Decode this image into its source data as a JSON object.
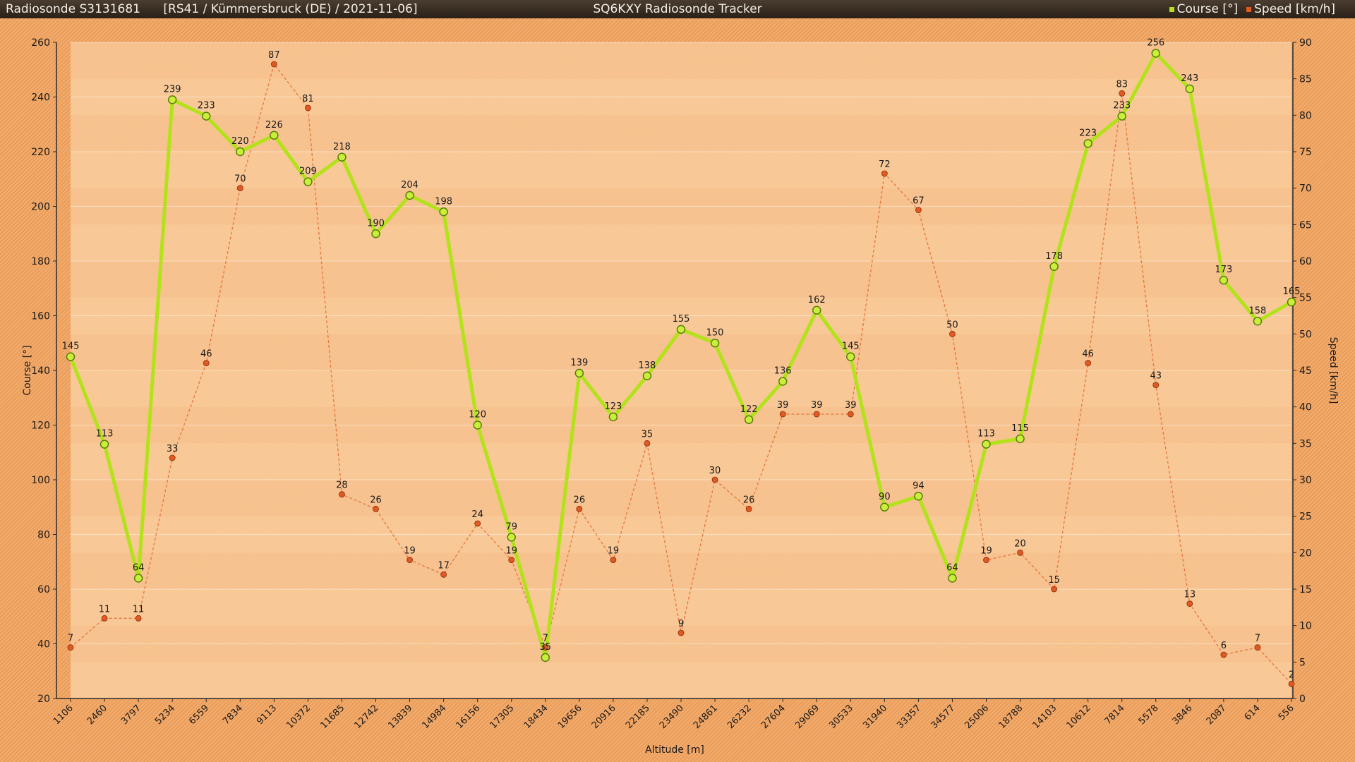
{
  "header": {
    "left_title": "Radiosonde S3131681      [RS41 / Kümmersbruck (DE) / 2021-11-06]",
    "center_title": "SQ6KXY Radiosonde Tracker"
  },
  "colors": {
    "course": "#b3e21a",
    "speed": "#e05a22",
    "plot_bg": "#f9cfa0"
  },
  "chart_data": {
    "type": "line",
    "title": "SQ6KXY Radiosonde Tracker",
    "xlabel": "Altitude [m]",
    "ylabel": "Course [°]",
    "y2label": "Speed [km/h]",
    "ylim": [
      20,
      260
    ],
    "y2lim": [
      0,
      90
    ],
    "yticks": [
      20,
      40,
      60,
      80,
      100,
      120,
      140,
      160,
      180,
      200,
      220,
      240,
      260
    ],
    "y2ticks": [
      0,
      5,
      10,
      15,
      20,
      25,
      30,
      35,
      40,
      45,
      50,
      55,
      60,
      65,
      70,
      75,
      80,
      85,
      90
    ],
    "legend_position": "top-right",
    "grid": true,
    "categories": [
      "1106",
      "2460",
      "3797",
      "5234",
      "6559",
      "7834",
      "9113",
      "10372",
      "11685",
      "12742",
      "13839",
      "14984",
      "16156",
      "17305",
      "18434",
      "19656",
      "20916",
      "22185",
      "23490",
      "24861",
      "26232",
      "27604",
      "29069",
      "30533",
      "31940",
      "33357",
      "34577",
      "25006",
      "18788",
      "14103",
      "10612",
      "7814",
      "5578",
      "3846",
      "2087",
      "614",
      "556"
    ],
    "series": [
      {
        "name": "Course [°]",
        "axis": "left",
        "values": [
          145,
          113,
          64,
          239,
          233,
          220,
          226,
          209,
          218,
          190,
          204,
          198,
          120,
          79,
          35,
          139,
          123,
          138,
          155,
          150,
          122,
          136,
          162,
          145,
          90,
          94,
          64,
          113,
          115,
          178,
          223,
          233,
          256,
          243,
          173,
          158,
          165
        ]
      },
      {
        "name": "Speed [km/h]",
        "axis": "right",
        "values": [
          7,
          11,
          11,
          33,
          46,
          70,
          87,
          81,
          28,
          26,
          19,
          17,
          24,
          19,
          7,
          26,
          19,
          35,
          9,
          30,
          26,
          39,
          39,
          39,
          72,
          67,
          50,
          19,
          20,
          15,
          46,
          83,
          43,
          13,
          6,
          7,
          2
        ]
      }
    ]
  }
}
